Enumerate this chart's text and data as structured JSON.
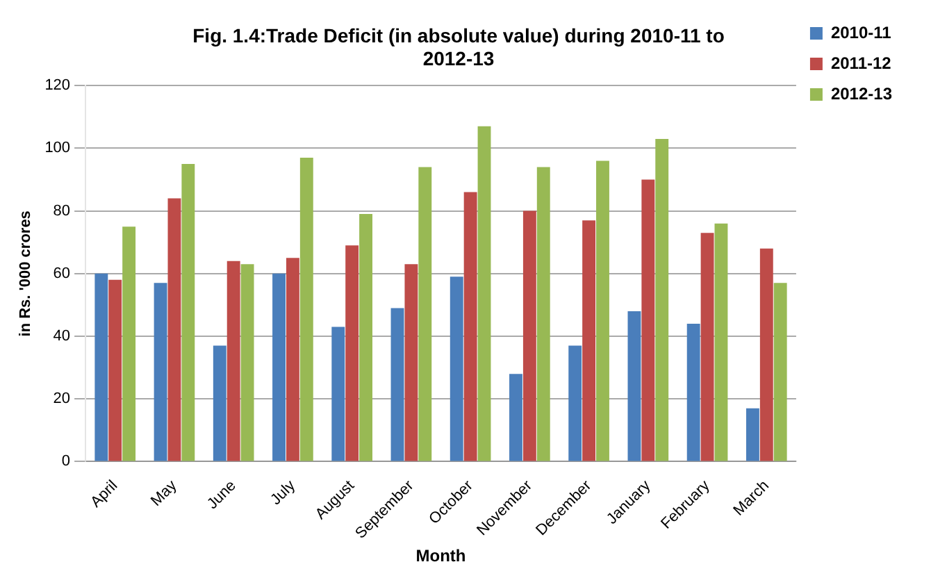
{
  "chart_data": {
    "type": "bar",
    "title": "Fig. 1.4:Trade Deficit (in absolute value) during 2010-11 to 2012-13",
    "xlabel": "Month",
    "ylabel": "in Rs. '000 crores",
    "categories": [
      "April",
      "May",
      "June",
      "July",
      "August",
      "September",
      "October",
      "November",
      "December",
      "January",
      "February",
      "March"
    ],
    "series": [
      {
        "name": "2010-11",
        "color": "#4a7ebb",
        "values": [
          60,
          57,
          37,
          60,
          43,
          49,
          59,
          28,
          37,
          48,
          44,
          17
        ]
      },
      {
        "name": "2011-12",
        "color": "#be4b48",
        "values": [
          58,
          84,
          64,
          65,
          69,
          63,
          86,
          80,
          77,
          90,
          73,
          68
        ]
      },
      {
        "name": "2012-13",
        "color": "#98b954",
        "values": [
          75,
          95,
          63,
          97,
          79,
          94,
          107,
          94,
          96,
          103,
          76,
          57
        ]
      }
    ],
    "ylim": [
      0,
      120
    ],
    "yticks": [
      0,
      20,
      40,
      60,
      80,
      100,
      120
    ],
    "grid": "y",
    "legend": "right"
  }
}
